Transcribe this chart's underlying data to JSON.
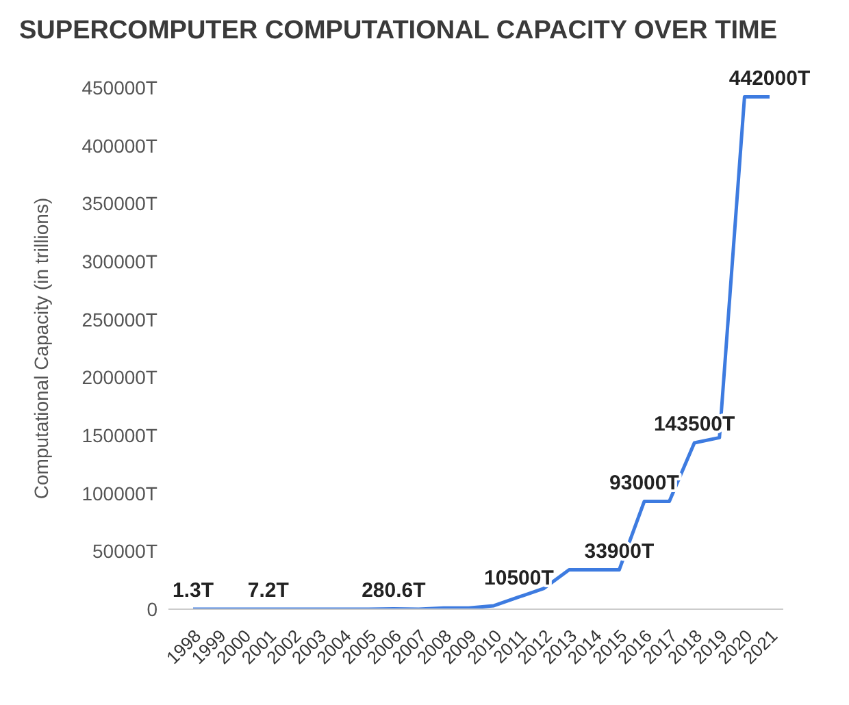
{
  "chart_data": {
    "type": "line",
    "title": "SUPERCOMPUTER COMPUTATIONAL CAPACITY OVER TIME",
    "ylabel": "Computational Capacity (in trillions)",
    "categories": [
      "1998",
      "1999",
      "2000",
      "2001",
      "2002",
      "2003",
      "2004",
      "2005",
      "2006",
      "2007",
      "2008",
      "2009",
      "2010",
      "2011",
      "2012",
      "2013",
      "2014",
      "2015",
      "2016",
      "2017",
      "2018",
      "2019",
      "2020",
      "2021"
    ],
    "series": [
      {
        "color": "#3d7be0",
        "values": [
          1.3,
          0,
          0,
          7.2,
          0,
          0,
          0,
          0,
          280.6,
          0,
          1000,
          1000,
          3000,
          10500,
          18000,
          33900,
          33900,
          33900,
          93000,
          93000,
          143500,
          148000,
          442000,
          442000
        ],
        "value_labels": [
          "1.3T",
          null,
          null,
          "7.2T",
          null,
          null,
          null,
          null,
          "280.6T",
          null,
          null,
          null,
          null,
          "10500T",
          null,
          null,
          null,
          "33900T",
          "93000T",
          null,
          "143500T",
          null,
          null,
          "442000T"
        ]
      }
    ],
    "ylim": [
      0,
      450000
    ],
    "yticks": [
      {
        "value": 0,
        "label": "0"
      },
      {
        "value": 50000,
        "label": "50000T"
      },
      {
        "value": 100000,
        "label": "100000T"
      },
      {
        "value": 150000,
        "label": "150000T"
      },
      {
        "value": 200000,
        "label": "200000T"
      },
      {
        "value": 250000,
        "label": "250000T"
      },
      {
        "value": 300000,
        "label": "300000T"
      },
      {
        "value": 350000,
        "label": "350000T"
      },
      {
        "value": 400000,
        "label": "400000T"
      },
      {
        "value": 450000,
        "label": "450000T"
      }
    ],
    "grid": false,
    "legend": false,
    "marker": "none",
    "line_style": "solid"
  }
}
